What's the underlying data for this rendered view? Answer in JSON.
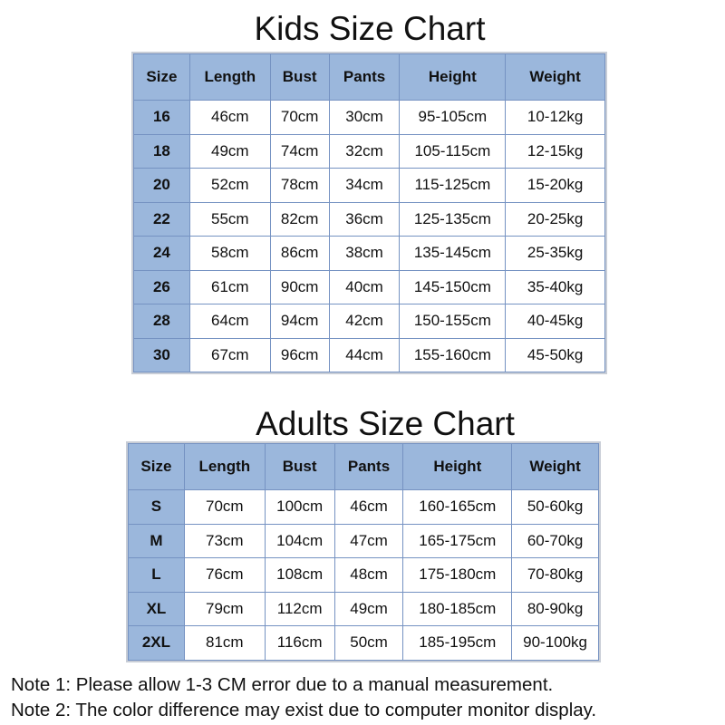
{
  "kids": {
    "title": "Kids Size Chart",
    "headers": [
      "Size",
      "Length",
      "Bust",
      "Pants",
      "Height",
      "Weight"
    ],
    "rows": [
      [
        "16",
        "46cm",
        "70cm",
        "30cm",
        "95-105cm",
        "10-12kg"
      ],
      [
        "18",
        "49cm",
        "74cm",
        "32cm",
        "105-115cm",
        "12-15kg"
      ],
      [
        "20",
        "52cm",
        "78cm",
        "34cm",
        "115-125cm",
        "15-20kg"
      ],
      [
        "22",
        "55cm",
        "82cm",
        "36cm",
        "125-135cm",
        "20-25kg"
      ],
      [
        "24",
        "58cm",
        "86cm",
        "38cm",
        "135-145cm",
        "25-35kg"
      ],
      [
        "26",
        "61cm",
        "90cm",
        "40cm",
        "145-150cm",
        "35-40kg"
      ],
      [
        "28",
        "64cm",
        "94cm",
        "42cm",
        "150-155cm",
        "40-45kg"
      ],
      [
        "30",
        "67cm",
        "96cm",
        "44cm",
        "155-160cm",
        "45-50kg"
      ]
    ]
  },
  "adults": {
    "title": "Adults Size Chart",
    "headers": [
      "Size",
      "Length",
      "Bust",
      "Pants",
      "Height",
      "Weight"
    ],
    "rows": [
      [
        "S",
        "70cm",
        "100cm",
        "46cm",
        "160-165cm",
        "50-60kg"
      ],
      [
        "M",
        "73cm",
        "104cm",
        "47cm",
        "165-175cm",
        "60-70kg"
      ],
      [
        "L",
        "76cm",
        "108cm",
        "48cm",
        "175-180cm",
        "70-80kg"
      ],
      [
        "XL",
        "79cm",
        "112cm",
        "49cm",
        "180-185cm",
        "80-90kg"
      ],
      [
        "2XL",
        "81cm",
        "116cm",
        "50cm",
        "185-195cm",
        "90-100kg"
      ]
    ]
  },
  "notes": [
    "Note 1: Please allow 1-3 CM error due to a manual measurement.",
    "Note 2: The color difference may exist due to computer monitor display."
  ],
  "colors": {
    "header": "#9bb7dc",
    "border": "#7592c2"
  }
}
